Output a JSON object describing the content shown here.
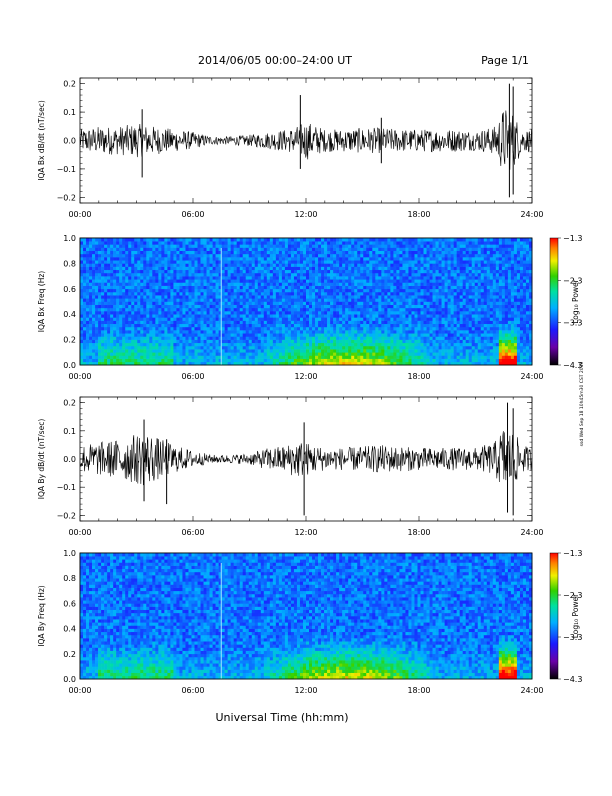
{
  "header": {
    "title": "2014/06/05  00:00–24:00 UT",
    "page": "Page 1/1"
  },
  "side_stamp": "ssd Wed Sep 18 10h45m30 CST 2019",
  "chart_data": [
    {
      "type": "line",
      "ylabel": "IQA Bx dB/dt (nT/sec)",
      "xlim": [
        0,
        24
      ],
      "ylim": [
        -0.22,
        0.22
      ],
      "yticks": [
        "0.2",
        "0.1",
        "0.0",
        "−0.1",
        "−0.2"
      ],
      "ytick_values": [
        0.2,
        0.1,
        0.0,
        -0.1,
        -0.2
      ],
      "xticks": [
        "00:00",
        "06:00",
        "12:00",
        "18:00",
        "24:00"
      ],
      "envelope": {
        "hours": [
          0,
          1,
          2,
          3,
          4,
          5,
          6,
          7,
          8,
          9,
          10,
          11,
          11.5,
          12,
          13,
          14,
          15,
          16,
          17,
          18,
          19,
          20,
          21,
          22,
          22.5,
          23,
          23.5,
          24
        ],
        "amplitude": [
          0.04,
          0.05,
          0.05,
          0.06,
          0.05,
          0.04,
          0.03,
          0.015,
          0.015,
          0.02,
          0.03,
          0.04,
          0.05,
          0.07,
          0.04,
          0.04,
          0.045,
          0.045,
          0.04,
          0.04,
          0.04,
          0.04,
          0.035,
          0.05,
          0.12,
          0.1,
          0.04,
          0.04
        ]
      },
      "spikes": [
        {
          "t": 3.3,
          "min": -0.13,
          "max": 0.11
        },
        {
          "t": 11.7,
          "min": -0.1,
          "max": 0.16
        },
        {
          "t": 16.0,
          "min": -0.08,
          "max": 0.08
        },
        {
          "t": 22.8,
          "min": -0.2,
          "max": 0.2
        },
        {
          "t": 23.0,
          "min": -0.19,
          "max": 0.19
        }
      ]
    },
    {
      "type": "heatmap",
      "ylabel": "IQA Bx Freq (Hz)",
      "xlim": [
        0,
        24
      ],
      "ylim": [
        0,
        1.0
      ],
      "yticks": [
        "1.0",
        "0.8",
        "0.6",
        "0.4",
        "0.2",
        "0.0"
      ],
      "ytick_values": [
        1.0,
        0.8,
        0.6,
        0.4,
        0.2,
        0.0
      ],
      "xticks": [
        "00:00",
        "06:00",
        "12:00",
        "18:00",
        "24:00"
      ],
      "colorbar": {
        "label": "Log₁₀ Power",
        "ticks": [
          "−1.3",
          "−2.3",
          "−3.3",
          "−4.3"
        ]
      },
      "enhancement_hours": [
        10,
        22.5
      ]
    },
    {
      "type": "line",
      "ylabel": "IQA By dB/dt (nT/sec)",
      "xlim": [
        0,
        24
      ],
      "ylim": [
        -0.22,
        0.22
      ],
      "yticks": [
        "0.2",
        "0.1",
        "0.0",
        "−0.1",
        "−0.2"
      ],
      "ytick_values": [
        0.2,
        0.1,
        0.0,
        -0.1,
        -0.2
      ],
      "xticks": [
        "00:00",
        "06:00",
        "12:00",
        "18:00",
        "24:00"
      ],
      "envelope": {
        "hours": [
          0,
          1,
          2,
          3,
          3.5,
          4,
          5,
          6,
          7,
          8,
          9,
          10,
          11,
          11.5,
          12,
          13,
          14,
          15,
          16,
          17,
          18,
          19,
          20,
          21,
          22,
          22.5,
          23,
          23.5,
          24
        ],
        "amplitude": [
          0.05,
          0.06,
          0.07,
          0.09,
          0.1,
          0.08,
          0.05,
          0.03,
          0.015,
          0.015,
          0.02,
          0.04,
          0.05,
          0.07,
          0.06,
          0.04,
          0.04,
          0.045,
          0.05,
          0.045,
          0.04,
          0.04,
          0.04,
          0.04,
          0.06,
          0.12,
          0.1,
          0.05,
          0.04
        ]
      },
      "spikes": [
        {
          "t": 3.4,
          "min": -0.15,
          "max": 0.14
        },
        {
          "t": 4.6,
          "min": -0.16,
          "max": 0.07
        },
        {
          "t": 11.9,
          "min": -0.2,
          "max": 0.13
        },
        {
          "t": 22.7,
          "min": -0.19,
          "max": 0.2
        },
        {
          "t": 23.0,
          "min": -0.2,
          "max": 0.18
        }
      ]
    },
    {
      "type": "heatmap",
      "ylabel": "IQA By Freq (Hz)",
      "xlim": [
        0,
        24
      ],
      "ylim": [
        0,
        1.0
      ],
      "yticks": [
        "1.0",
        "0.8",
        "0.6",
        "0.4",
        "0.2",
        "0.0"
      ],
      "ytick_values": [
        1.0,
        0.8,
        0.6,
        0.4,
        0.2,
        0.0
      ],
      "xticks": [
        "00:00",
        "06:00",
        "12:00",
        "18:00",
        "24:00"
      ],
      "colorbar": {
        "label": "Log₁₀ Power",
        "ticks": [
          "−1.3",
          "−2.3",
          "−3.3",
          "−4.3"
        ]
      },
      "enhancement_hours": [
        10,
        22.5
      ]
    }
  ],
  "xlabel": "Universal Time (hh:mm)"
}
